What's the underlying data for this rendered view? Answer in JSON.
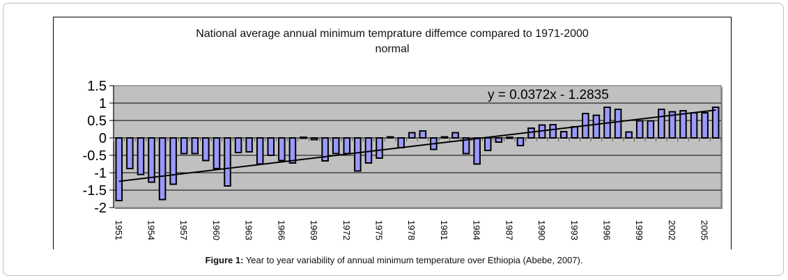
{
  "figure": {
    "caption_label": "Figure 1:",
    "caption_text": " Year to year variability of annual minimum temperature over Ethiopia (Abebe, 2007)."
  },
  "chart_data": {
    "type": "bar",
    "title_line1": "National average annual minimum temprature diffemce compared to 1971-2000",
    "title_line2": "normal",
    "xlabel": "",
    "ylabel": "",
    "ylim": [
      -2,
      1.5
    ],
    "yticks": [
      1.5,
      1,
      0.5,
      0,
      -0.5,
      -1,
      -1.5,
      -2
    ],
    "ytick_labels": [
      "1.5",
      "1",
      "0.5",
      "0",
      "-0.5",
      "-1",
      "-1.5",
      "-2"
    ],
    "grid": true,
    "bar_color": "#9999ff",
    "plot_background": "#c0c0c0",
    "categories": [
      1951,
      1952,
      1953,
      1954,
      1955,
      1956,
      1957,
      1958,
      1959,
      1960,
      1961,
      1962,
      1963,
      1964,
      1965,
      1966,
      1967,
      1968,
      1969,
      1970,
      1971,
      1972,
      1973,
      1974,
      1975,
      1976,
      1977,
      1978,
      1979,
      1980,
      1981,
      1982,
      1983,
      1984,
      1985,
      1986,
      1987,
      1988,
      1989,
      1990,
      1991,
      1992,
      1993,
      1994,
      1995,
      1996,
      1997,
      1998,
      1999,
      2000,
      2001,
      2002,
      2003,
      2004,
      2005,
      2006
    ],
    "xtick_labels": [
      "1951",
      "1954",
      "1957",
      "1960",
      "1963",
      "1966",
      "1969",
      "1972",
      "1975",
      "1978",
      "1981",
      "1984",
      "1987",
      "1990",
      "1993",
      "1996",
      "1999",
      "2002",
      "2005"
    ],
    "series": [
      {
        "name": "Minimum temperature difference",
        "values": [
          -1.8,
          -0.88,
          -1.05,
          -1.27,
          -1.77,
          -1.33,
          -0.45,
          -0.45,
          -0.65,
          -0.88,
          -1.38,
          -0.42,
          -0.4,
          -0.75,
          -0.5,
          -0.65,
          -0.72,
          0.02,
          -0.05,
          -0.66,
          -0.45,
          -0.45,
          -0.95,
          -0.72,
          -0.58,
          0.03,
          -0.28,
          0.15,
          0.2,
          -0.33,
          0.03,
          0.15,
          -0.45,
          -0.75,
          -0.36,
          -0.12,
          0.02,
          -0.22,
          0.28,
          0.37,
          0.38,
          0.18,
          0.32,
          0.7,
          0.65,
          0.88,
          0.82,
          0.17,
          0.49,
          0.49,
          0.82,
          0.75,
          0.78,
          0.72,
          0.72,
          0.88
        ]
      }
    ],
    "trendline": {
      "type": "linear",
      "slope": 0.0372,
      "intercept": -1.2835,
      "label": "y = 0.0372x - 1.2835"
    }
  }
}
